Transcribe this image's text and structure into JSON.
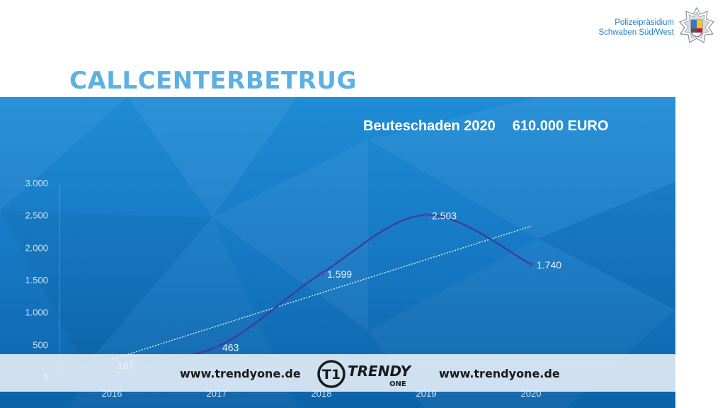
{
  "org": {
    "line1": "Polizeipräsidium",
    "line2": "Schwaben Süd/West"
  },
  "icons": {
    "badge": "police-star-icon",
    "logo": "trendyone-logo-icon"
  },
  "title": "CALLCENTERBETRUG",
  "headline": {
    "label": "Beuteschaden 2020",
    "value": "610.000 EURO"
  },
  "banner": {
    "url_left": "www.trendyone.de",
    "url_right": "www.trendyone.de",
    "logo_text": "TRENDY",
    "logo_sub": "ONE",
    "logo_mark": "T1"
  },
  "colors": {
    "panel": "#1577c2",
    "line": "#3d3f9e",
    "trend": "#e6f0fb",
    "title": "#5fb0e2"
  },
  "chart_data": {
    "type": "line",
    "title": "",
    "xlabel": "",
    "ylabel": "",
    "categories": [
      "2016",
      "2017",
      "2018",
      "2019",
      "2020"
    ],
    "series": [
      {
        "values": [
          187,
          463,
          1599,
          2503,
          1740
        ],
        "labels": [
          "187",
          "463",
          "1.599",
          "2.503",
          "1.740"
        ]
      }
    ],
    "trendline": true,
    "ylim": [
      0,
      3000
    ],
    "yticks": [
      0,
      500,
      1000,
      1500,
      2000,
      2500,
      3000
    ],
    "ytick_labels": [
      "0",
      "500",
      "1.000",
      "1.500",
      "2.000",
      "2.500",
      "3.000"
    ],
    "grid": false,
    "legend": "none"
  }
}
